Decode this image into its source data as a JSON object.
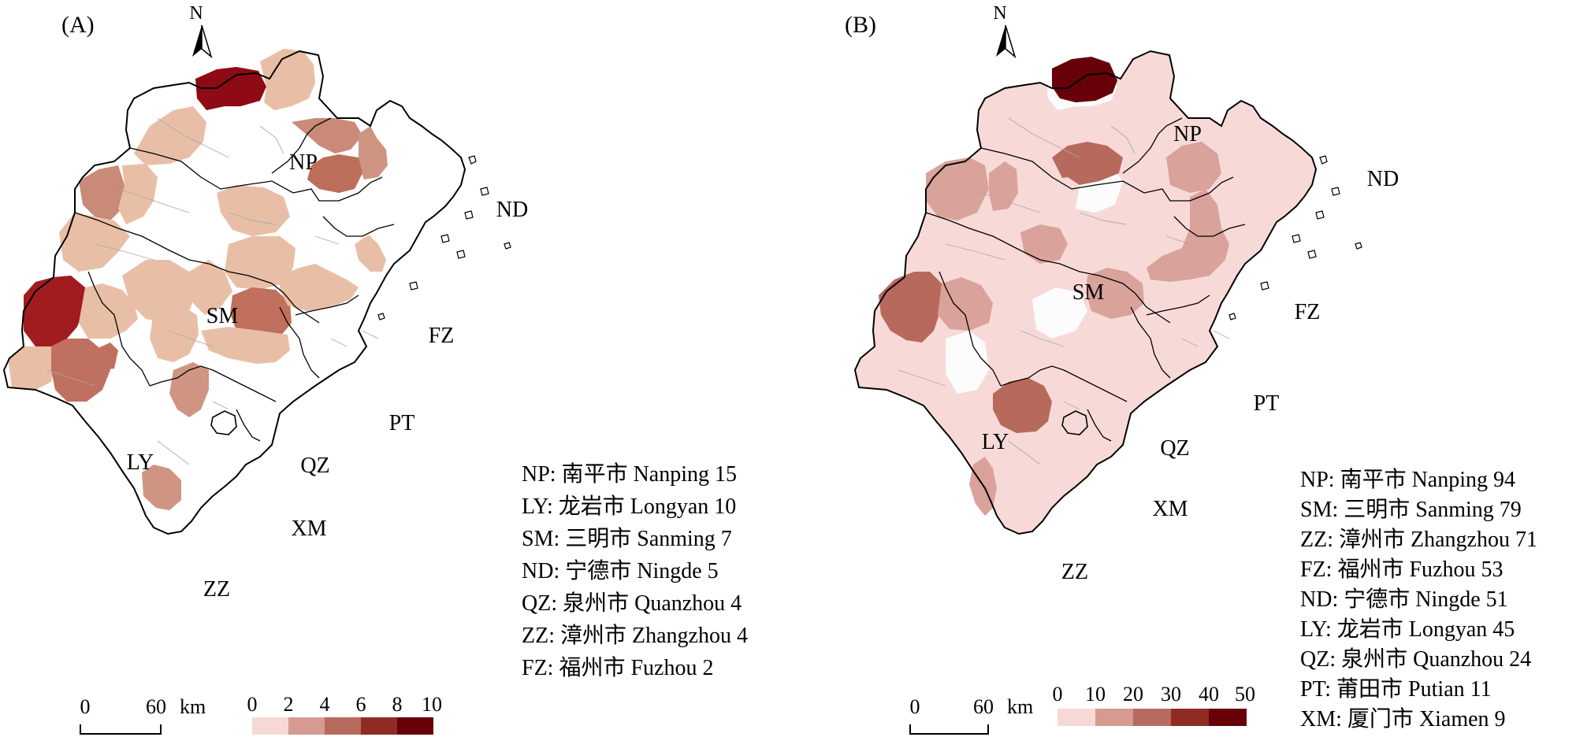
{
  "panels": [
    {
      "id": "A",
      "label": "(A)",
      "north": "N",
      "scale": {
        "zero": "0",
        "distance": "60",
        "unit": "km"
      },
      "legend_ticks": [
        "0",
        "2",
        "4",
        "6",
        "8",
        "10"
      ],
      "legend_colors": [
        "#f6d9d5",
        "#d59b92",
        "#b66b5f",
        "#8e2c24",
        "#680008"
      ],
      "city_labels": {
        "NP": "NP",
        "ND": "ND",
        "SM": "SM",
        "FZ": "FZ",
        "LY": "LY",
        "PT": "PT",
        "QZ": "QZ",
        "XM": "XM",
        "ZZ": "ZZ"
      },
      "list": [
        "NP: 南平市 Nanping 15",
        "LY: 龙岩市 Longyan 10",
        "SM: 三明市 Sanming 7",
        "ND: 宁德市 Ningde 5",
        "QZ: 泉州市 Quanzhou 4",
        "ZZ: 漳州市 Zhangzhou 4",
        "FZ: 福州市 Fuzhou 2"
      ]
    },
    {
      "id": "B",
      "label": "(B)",
      "north": "N",
      "scale": {
        "zero": "0",
        "distance": "60",
        "unit": "km"
      },
      "legend_ticks": [
        "0",
        "10",
        "20",
        "30",
        "40",
        "50"
      ],
      "legend_colors": [
        "#f6d9d5",
        "#d59b92",
        "#b66b5f",
        "#8e2c24",
        "#680008"
      ],
      "city_labels": {
        "NP": "NP",
        "ND": "ND",
        "SM": "SM",
        "FZ": "FZ",
        "LY": "LY",
        "PT": "PT",
        "QZ": "QZ",
        "XM": "XM",
        "ZZ": "ZZ"
      },
      "list": [
        "NP: 南平市 Nanping 94",
        "SM: 三明市 Sanming 79",
        "ZZ: 漳州市 Zhangzhou 71",
        "FZ: 福州市 Fuzhou 53",
        "ND: 宁德市 Ningde 51",
        "LY: 龙岩市 Longyan 45",
        "QZ: 泉州市 Quanzhou 24",
        "PT: 莆田市 Putian 11",
        "XM: 厦门市 Xiamen 9"
      ]
    }
  ]
}
